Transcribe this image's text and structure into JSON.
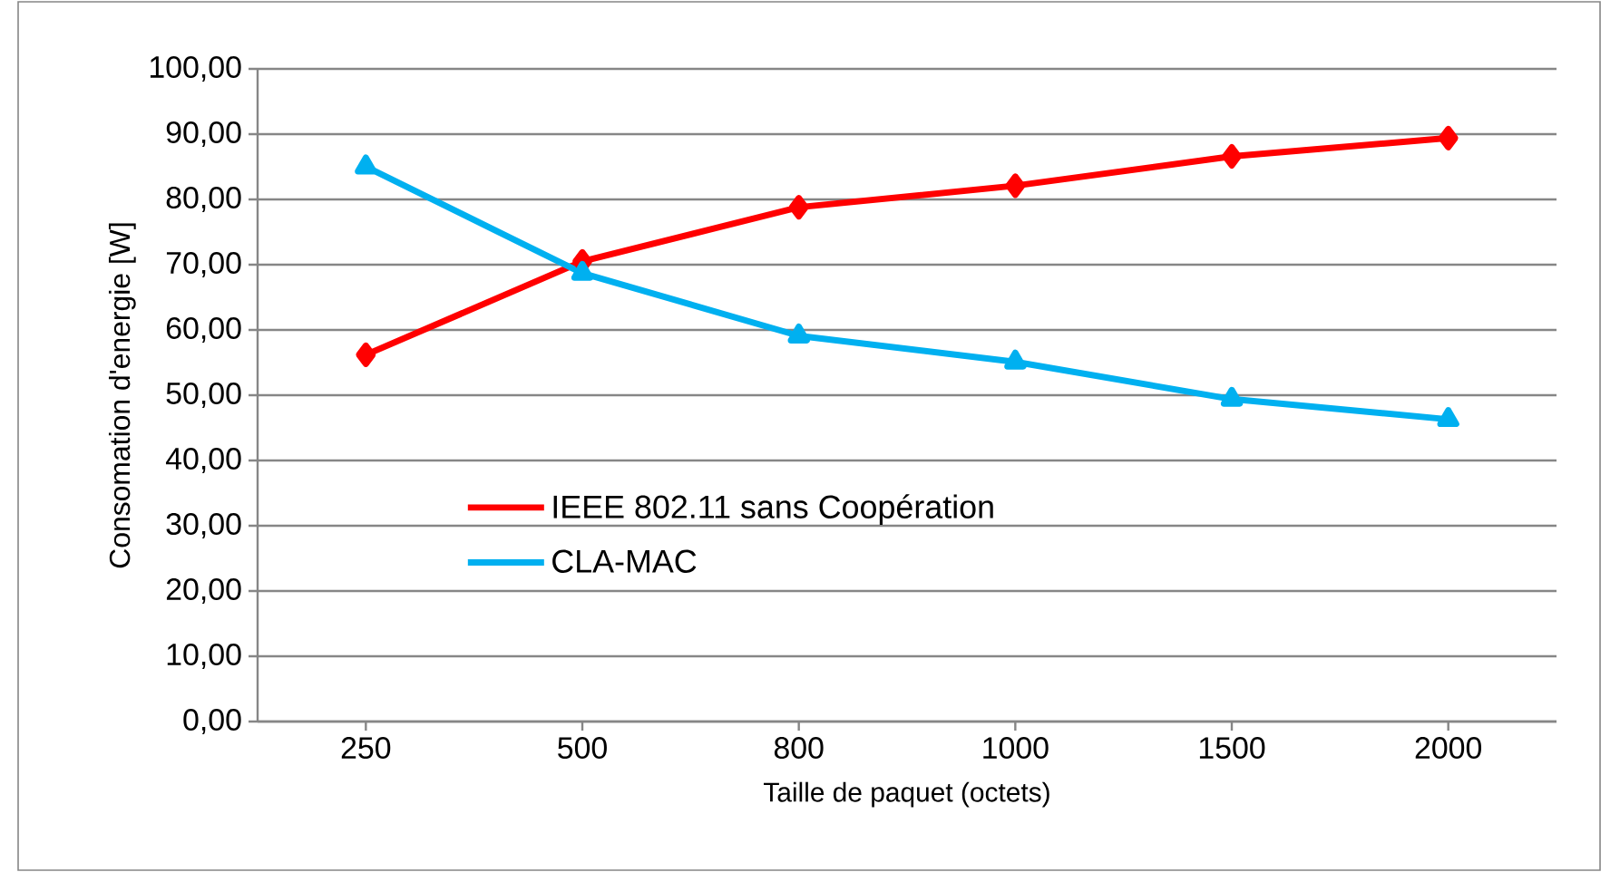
{
  "chart_data": {
    "type": "line",
    "xlabel": "Taille de paquet (octets)",
    "ylabel": "Consomation d'energie [W]",
    "categories": [
      "250",
      "500",
      "800",
      "1000",
      "1500",
      "2000"
    ],
    "series": [
      {
        "name": "IEEE 802.11 sans Coopération",
        "color": "#ff0000",
        "marker": "diamond",
        "values": [
          56.2,
          70.5,
          78.8,
          82.1,
          86.6,
          89.4
        ]
      },
      {
        "name": "CLA-MAC",
        "color": "#00b0f0",
        "marker": "triangle",
        "values": [
          85.0,
          68.7,
          59.1,
          55.1,
          49.4,
          46.3
        ]
      }
    ],
    "ylim": [
      0,
      100
    ],
    "yticks": [
      {
        "value": 0,
        "label": "0,00"
      },
      {
        "value": 10,
        "label": "10,00"
      },
      {
        "value": 20,
        "label": "20,00"
      },
      {
        "value": 30,
        "label": "30,00"
      },
      {
        "value": 40,
        "label": "40,00"
      },
      {
        "value": 50,
        "label": "50,00"
      },
      {
        "value": 60,
        "label": "60,00"
      },
      {
        "value": 70,
        "label": "70,00"
      },
      {
        "value": 80,
        "label": "80,00"
      },
      {
        "value": 90,
        "label": "90,00"
      },
      {
        "value": 100,
        "label": "100,00"
      }
    ],
    "grid": "y",
    "legend": "left",
    "line_style": "solid"
  }
}
